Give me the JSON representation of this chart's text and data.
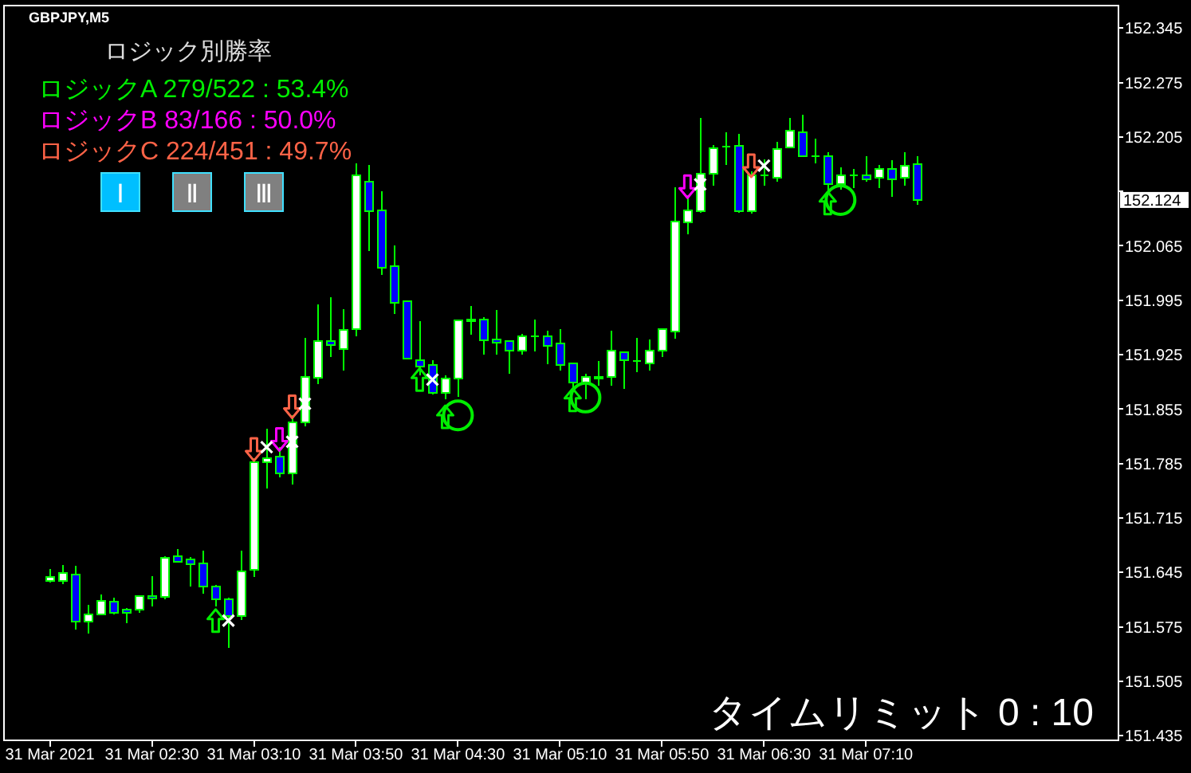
{
  "chart_data": {
    "type": "candlestick",
    "title": "GBPJPY,M5",
    "x": [
      "2021-03-31T01:50",
      "2021-03-31T01:55",
      "2021-03-31T02:00",
      "2021-03-31T02:05",
      "2021-03-31T02:10",
      "2021-03-31T02:15",
      "2021-03-31T02:20",
      "2021-03-31T02:25",
      "2021-03-31T02:30",
      "2021-03-31T02:35",
      "2021-03-31T02:40",
      "2021-03-31T02:45",
      "2021-03-31T02:50",
      "2021-03-31T02:55",
      "2021-03-31T03:00",
      "2021-03-31T03:05",
      "2021-03-31T03:10",
      "2021-03-31T03:15",
      "2021-03-31T03:20",
      "2021-03-31T03:25",
      "2021-03-31T03:30",
      "2021-03-31T03:35",
      "2021-03-31T03:40",
      "2021-03-31T03:45",
      "2021-03-31T03:50",
      "2021-03-31T03:55",
      "2021-03-31T04:00",
      "2021-03-31T04:05",
      "2021-03-31T04:10",
      "2021-03-31T04:15",
      "2021-03-31T04:20",
      "2021-03-31T04:25",
      "2021-03-31T04:30",
      "2021-03-31T04:35",
      "2021-03-31T04:40",
      "2021-03-31T04:45",
      "2021-03-31T04:50",
      "2021-03-31T04:55",
      "2021-03-31T05:00",
      "2021-03-31T05:05",
      "2021-03-31T05:10",
      "2021-03-31T05:15",
      "2021-03-31T05:20",
      "2021-03-31T05:25",
      "2021-03-31T05:30",
      "2021-03-31T05:35",
      "2021-03-31T05:40",
      "2021-03-31T05:45",
      "2021-03-31T05:50",
      "2021-03-31T05:55",
      "2021-03-31T06:00",
      "2021-03-31T06:05",
      "2021-03-31T06:10",
      "2021-03-31T06:15",
      "2021-03-31T06:20",
      "2021-03-31T06:25",
      "2021-03-31T06:30",
      "2021-03-31T06:35",
      "2021-03-31T06:40",
      "2021-03-31T06:45",
      "2021-03-31T06:50",
      "2021-03-31T06:55",
      "2021-03-31T07:00",
      "2021-03-31T07:05",
      "2021-03-31T07:10",
      "2021-03-31T07:15",
      "2021-03-31T07:20",
      "2021-03-31T07:25",
      "2021-03-31T07:30"
    ],
    "xlim": [
      "2021-03-31T01:32",
      "2021-03-31T08:49"
    ],
    "xticks": [
      {
        "value": "2021-03-31T01:50",
        "label": "31 Mar 2021"
      },
      {
        "value": "2021-03-31T02:30",
        "label": "31 Mar 02:30"
      },
      {
        "value": "2021-03-31T03:10",
        "label": "31 Mar 03:10"
      },
      {
        "value": "2021-03-31T03:50",
        "label": "31 Mar 03:50"
      },
      {
        "value": "2021-03-31T04:30",
        "label": "31 Mar 04:30"
      },
      {
        "value": "2021-03-31T05:10",
        "label": "31 Mar 05:10"
      },
      {
        "value": "2021-03-31T05:50",
        "label": "31 Mar 05:50"
      },
      {
        "value": "2021-03-31T06:30",
        "label": "31 Mar 06:30"
      },
      {
        "value": "2021-03-31T07:10",
        "label": "31 Mar 07:10"
      }
    ],
    "ohlc": [
      [
        151.634,
        151.649,
        151.632,
        151.639
      ],
      [
        151.634,
        151.655,
        151.63,
        151.644
      ],
      [
        151.642,
        151.653,
        151.571,
        151.582
      ],
      [
        151.582,
        151.603,
        151.566,
        151.591
      ],
      [
        151.591,
        151.617,
        151.59,
        151.608
      ],
      [
        151.607,
        151.612,
        151.591,
        151.593
      ],
      [
        151.597,
        151.599,
        151.58,
        151.593
      ],
      [
        151.597,
        151.616,
        151.593,
        151.615
      ],
      [
        151.615,
        151.64,
        151.601,
        151.611
      ],
      [
        151.613,
        151.666,
        151.61,
        151.664
      ],
      [
        151.666,
        151.675,
        151.658,
        151.659
      ],
      [
        151.662,
        151.665,
        151.627,
        151.656
      ],
      [
        151.657,
        151.673,
        151.618,
        151.627
      ],
      [
        151.627,
        151.629,
        151.601,
        151.61
      ],
      [
        151.61,
        151.612,
        151.548,
        151.589
      ],
      [
        151.589,
        151.673,
        151.584,
        151.646
      ],
      [
        151.648,
        151.792,
        151.639,
        151.787
      ],
      [
        151.787,
        151.83,
        151.753,
        151.792
      ],
      [
        151.794,
        151.806,
        151.767,
        151.772
      ],
      [
        151.772,
        151.847,
        151.758,
        151.838
      ],
      [
        151.838,
        151.947,
        151.833,
        151.896
      ],
      [
        151.895,
        151.99,
        151.887,
        151.943
      ],
      [
        151.943,
        151.999,
        151.922,
        151.937
      ],
      [
        151.932,
        151.984,
        151.905,
        151.957
      ],
      [
        151.958,
        152.171,
        151.949,
        152.156
      ],
      [
        152.147,
        152.169,
        152.058,
        152.11
      ],
      [
        152.111,
        152.135,
        152.028,
        152.037
      ],
      [
        152.039,
        152.065,
        151.977,
        151.992
      ],
      [
        151.994,
        151.994,
        151.92,
        151.92
      ],
      [
        151.918,
        151.968,
        151.898,
        151.91
      ],
      [
        151.912,
        151.918,
        151.874,
        151.876
      ],
      [
        151.876,
        151.898,
        151.868,
        151.894
      ],
      [
        151.894,
        151.969,
        151.871,
        151.969
      ],
      [
        151.969,
        151.988,
        151.951,
        151.97
      ],
      [
        151.97,
        151.973,
        151.925,
        151.944
      ],
      [
        151.945,
        151.982,
        151.925,
        151.94
      ],
      [
        151.943,
        151.943,
        151.9,
        151.93
      ],
      [
        151.93,
        151.952,
        151.925,
        151.949
      ],
      [
        151.949,
        151.97,
        151.929,
        151.949
      ],
      [
        151.949,
        151.956,
        151.913,
        151.936
      ],
      [
        151.939,
        151.958,
        151.905,
        151.912
      ],
      [
        151.914,
        151.914,
        151.88,
        151.889
      ],
      [
        151.889,
        151.9,
        151.868,
        151.896
      ],
      [
        151.895,
        151.917,
        151.885,
        151.896
      ],
      [
        151.896,
        151.956,
        151.885,
        151.93
      ],
      [
        151.928,
        151.928,
        151.881,
        151.918
      ],
      [
        151.917,
        151.947,
        151.903,
        151.917
      ],
      [
        151.914,
        151.945,
        151.905,
        151.93
      ],
      [
        151.93,
        151.958,
        151.922,
        151.958
      ],
      [
        151.955,
        152.14,
        151.946,
        152.096
      ],
      [
        152.095,
        152.13,
        152.08,
        152.111
      ],
      [
        152.11,
        152.229,
        152.108,
        152.158
      ],
      [
        152.158,
        152.195,
        152.142,
        152.191
      ],
      [
        152.193,
        152.211,
        152.169,
        152.193
      ],
      [
        152.194,
        152.209,
        152.108,
        152.11
      ],
      [
        152.11,
        152.161,
        152.106,
        152.156
      ],
      [
        152.156,
        152.176,
        152.142,
        152.156
      ],
      [
        152.153,
        152.199,
        152.147,
        152.19
      ],
      [
        152.192,
        152.229,
        152.192,
        152.213
      ],
      [
        152.211,
        152.234,
        152.18,
        152.18
      ],
      [
        152.18,
        152.203,
        152.171,
        152.18
      ],
      [
        152.18,
        152.185,
        152.135,
        152.144
      ],
      [
        152.144,
        152.166,
        152.137,
        152.156
      ],
      [
        152.156,
        152.164,
        152.139,
        152.156
      ],
      [
        152.156,
        152.18,
        152.147,
        152.151
      ],
      [
        152.153,
        152.169,
        152.139,
        152.164
      ],
      [
        152.164,
        152.175,
        152.128,
        152.151
      ],
      [
        152.153,
        152.185,
        152.142,
        152.168
      ],
      [
        152.17,
        152.18,
        152.118,
        152.124
      ]
    ],
    "series": [
      {
        "name": "ロジックA 279/522 : 53.4%",
        "type": "scatter",
        "marker": "triangle",
        "color": "#00ee00",
        "values": [
          null,
          null,
          null,
          null,
          null,
          null,
          null,
          null,
          null,
          null,
          null,
          null,
          null,
          151.583,
          null,
          null,
          null,
          null,
          null,
          null,
          null,
          null,
          null,
          null,
          null,
          null,
          null,
          null,
          null,
          151.893,
          null,
          151.845,
          null,
          null,
          null,
          null,
          null,
          null,
          null,
          null,
          null,
          151.867,
          null,
          null,
          null,
          null,
          null,
          null,
          null,
          null,
          null,
          null,
          null,
          null,
          null,
          null,
          null,
          null,
          null,
          null,
          null,
          152.12,
          null,
          null,
          null,
          null,
          null,
          null,
          null
        ]
      },
      {
        "name": "ロジックB 83/166 : 50.0%",
        "type": "scatter",
        "marker": "triangle",
        "color": "#ff00ff",
        "values": [
          null,
          null,
          null,
          null,
          null,
          null,
          null,
          null,
          null,
          null,
          null,
          null,
          null,
          null,
          null,
          null,
          null,
          null,
          151.816,
          null,
          null,
          null,
          null,
          null,
          null,
          null,
          null,
          null,
          null,
          null,
          null,
          null,
          null,
          null,
          null,
          null,
          null,
          null,
          null,
          null,
          null,
          null,
          null,
          null,
          null,
          null,
          null,
          null,
          null,
          null,
          152.141,
          null,
          null,
          null,
          null,
          null,
          null,
          null,
          null,
          null,
          null,
          null,
          null,
          null,
          null,
          null,
          null,
          null,
          null
        ]
      },
      {
        "name": "ロジックC 224/451 : 49.7%",
        "type": "scatter",
        "marker": "triangle",
        "color": "#ff6347",
        "values": [
          null,
          null,
          null,
          null,
          null,
          null,
          null,
          null,
          null,
          null,
          null,
          null,
          null,
          null,
          null,
          null,
          151.803,
          null,
          null,
          151.858,
          null,
          null,
          null,
          null,
          null,
          null,
          null,
          null,
          null,
          null,
          null,
          null,
          null,
          null,
          null,
          null,
          null,
          null,
          null,
          null,
          null,
          null,
          null,
          null,
          null,
          null,
          null,
          null,
          null,
          null,
          null,
          null,
          null,
          null,
          null,
          152.168,
          null,
          null,
          null,
          null,
          null,
          null,
          null,
          null,
          null,
          null,
          null,
          null,
          null
        ]
      },
      {
        "type": "scatter",
        "marker": "circle",
        "color": "#00ee00",
        "values": [
          null,
          null,
          null,
          null,
          null,
          null,
          null,
          null,
          null,
          null,
          null,
          null,
          null,
          null,
          null,
          null,
          null,
          null,
          null,
          null,
          null,
          null,
          null,
          null,
          null,
          null,
          null,
          null,
          null,
          null,
          null,
          null,
          151.847,
          null,
          null,
          null,
          null,
          null,
          null,
          null,
          null,
          null,
          151.87,
          null,
          null,
          null,
          null,
          null,
          null,
          null,
          null,
          null,
          null,
          null,
          null,
          null,
          null,
          null,
          null,
          null,
          null,
          null,
          152.124,
          null,
          null,
          null,
          null,
          null,
          null
        ]
      },
      {
        "type": "scatter",
        "marker": "cross",
        "color": "#ffffff",
        "values": [
          null,
          null,
          null,
          null,
          null,
          null,
          null,
          null,
          null,
          null,
          null,
          null,
          null,
          null,
          151.583,
          null,
          null,
          151.806,
          null,
          151.813,
          151.862,
          null,
          null,
          null,
          null,
          null,
          null,
          null,
          null,
          null,
          151.893,
          null,
          null,
          null,
          null,
          null,
          null,
          null,
          null,
          null,
          null,
          null,
          null,
          null,
          null,
          null,
          null,
          null,
          null,
          null,
          null,
          152.144,
          null,
          null,
          null,
          null,
          152.168,
          null,
          null,
          null,
          null,
          null,
          null,
          null,
          null,
          null,
          null,
          null,
          null
        ]
      }
    ],
    "ylim": [
      151.429,
      152.374
    ],
    "yticks": [
      151.435,
      151.505,
      151.575,
      151.645,
      151.715,
      151.785,
      151.855,
      151.925,
      151.995,
      152.065,
      {
        "value": 152.135,
        "label": null
      },
      152.205,
      152.275,
      152.345
    ],
    "legend_title": "ロジック別勝率",
    "annotations": [
      "152.124",
      "Ⅰ",
      "Ⅱ",
      "Ⅲ",
      "タイムリミット 0 : 10"
    ]
  }
}
